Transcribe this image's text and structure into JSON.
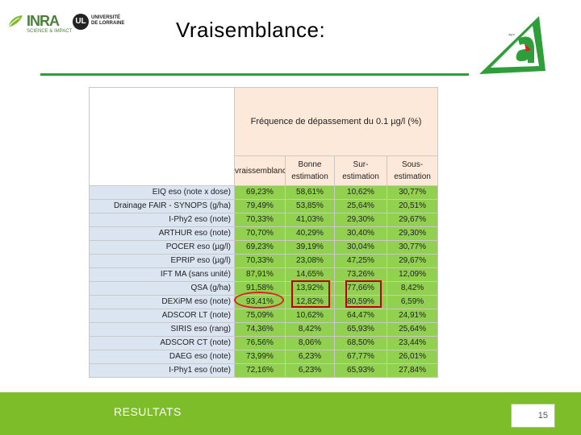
{
  "header": {
    "title": "Vraisemblance:",
    "logo_inra_text": "INRA",
    "logo_inra_sub": "SCIENCE & IMPACT",
    "logo_lorraine_text": "UNIVERSITÉ\nDE LORRAINE",
    "logo_lorraine_mark": "UL"
  },
  "table": {
    "group_header": "Fréquence de dépassement du 0.1 µg/l (%)",
    "columns": [
      "vraissemblance",
      "Bonne estimation",
      "Sur-estimation",
      "Sous-estimation"
    ],
    "rows": [
      {
        "label": "EIQ eso (note x dose)",
        "values": [
          "69,23%",
          "58,61%",
          "10,62%",
          "30,77%"
        ]
      },
      {
        "label": "Drainage FAIR - SYNOPS (g/ha)",
        "values": [
          "79,49%",
          "53,85%",
          "25,64%",
          "20,51%"
        ]
      },
      {
        "label": "I-Phy2 eso (note)",
        "values": [
          "70,33%",
          "41,03%",
          "29,30%",
          "29,67%"
        ]
      },
      {
        "label": "ARTHUR eso (note)",
        "values": [
          "70,70%",
          "40,29%",
          "30,40%",
          "29,30%"
        ]
      },
      {
        "label": "POCER eso (µg/l)",
        "values": [
          "69,23%",
          "39,19%",
          "30,04%",
          "30,77%"
        ]
      },
      {
        "label": "EPRIP eso (µg/l)",
        "values": [
          "70,33%",
          "23,08%",
          "47,25%",
          "29,67%"
        ]
      },
      {
        "label": "IFT MA (sans unité)",
        "values": [
          "87,91%",
          "14,65%",
          "73,26%",
          "12,09%"
        ]
      },
      {
        "label": "QSA (g/ha)",
        "values": [
          "91,58%",
          "13,92%",
          "77,66%",
          "8,42%"
        ]
      },
      {
        "label": "DEXiPM eso (note)",
        "values": [
          "93,41%",
          "12,82%",
          "80,59%",
          "6,59%"
        ]
      },
      {
        "label": "ADSCOR LT (note)",
        "values": [
          "75,09%",
          "10,62%",
          "64,47%",
          "24,91%"
        ]
      },
      {
        "label": "SIRIS eso (rang)",
        "values": [
          "74,36%",
          "8,42%",
          "65,93%",
          "25,64%"
        ]
      },
      {
        "label": "ADSCOR CT (note)",
        "values": [
          "76,56%",
          "8,06%",
          "68,50%",
          "23,44%"
        ]
      },
      {
        "label": "DAEG eso (note)",
        "values": [
          "73,99%",
          "6,23%",
          "67,77%",
          "26,01%"
        ]
      },
      {
        "label": "I-Phy1 eso (note)",
        "values": [
          "72,16%",
          "6,23%",
          "65,93%",
          "27,84%"
        ]
      }
    ]
  },
  "footer": {
    "section_label": "RESULTATS",
    "page_number": "15"
  },
  "colors": {
    "accent_green": "#7dbd2a",
    "title_line": "#2e9e3a",
    "cell_green": "#92d050",
    "header_pink": "#fde9d9",
    "row_blue": "#dbe5f1",
    "highlight_red": "#e02020"
  }
}
